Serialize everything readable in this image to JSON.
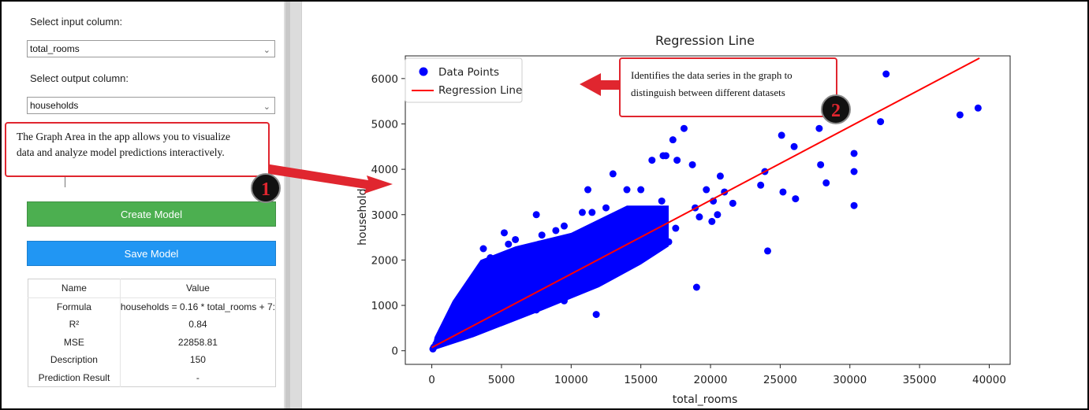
{
  "left_panel": {
    "input_label": "Select input column:",
    "input_value": "total_rooms",
    "output_label": "Select output column:",
    "output_value": "households",
    "create_button": "Create Model",
    "save_button": "Save Model",
    "results": {
      "headers": [
        "Name",
        "Value"
      ],
      "rows": [
        {
          "name": "Formula",
          "value": "households = 0.16 * total_rooms + 7:"
        },
        {
          "name": "R²",
          "value": "0.84"
        },
        {
          "name": "MSE",
          "value": "22858.81"
        },
        {
          "name": "Description",
          "value": "150"
        },
        {
          "name": "Prediction Result",
          "value": "-"
        }
      ]
    }
  },
  "annotations": {
    "callout1_text": "The Graph Area in the app allows you to visualize data and analyze model predictions interactively.",
    "callout1_line1": "The Graph Area in the app allows you to visualize",
    "callout1_line2": "data and analyze model predictions interactively.",
    "badge1": "1",
    "callout2_line1": "Identifies the data series in the graph to",
    "callout2_line2": "distinguish between different datasets",
    "badge2": "2",
    "accent_color": "#e0262f"
  },
  "chart_data": {
    "type": "scatter",
    "title": "Regression Line",
    "xlabel": "total_rooms",
    "ylabel": "households",
    "xlim": [
      -1900,
      41500
    ],
    "ylim": [
      -300,
      6500
    ],
    "xticks": [
      0,
      5000,
      10000,
      15000,
      20000,
      25000,
      30000,
      35000,
      40000
    ],
    "yticks": [
      0,
      1000,
      2000,
      3000,
      4000,
      5000,
      6000
    ],
    "legend": [
      "Data Points",
      "Regression Line"
    ],
    "legend_position": "top-left",
    "series": [
      {
        "name": "Data Points",
        "color": "#0000ff",
        "points": [
          [
            32600,
            6100
          ],
          [
            39200,
            5350
          ],
          [
            37900,
            5200
          ],
          [
            32200,
            5050
          ],
          [
            30300,
            4350
          ],
          [
            30300,
            3950
          ],
          [
            30300,
            3200
          ],
          [
            28300,
            3700
          ],
          [
            27900,
            4100
          ],
          [
            27800,
            4900
          ],
          [
            26100,
            3350
          ],
          [
            26000,
            4500
          ],
          [
            25200,
            3500
          ],
          [
            25100,
            4750
          ],
          [
            24100,
            2200
          ],
          [
            23900,
            3950
          ],
          [
            23600,
            3650
          ],
          [
            21600,
            3250
          ],
          [
            21000,
            3500
          ],
          [
            20700,
            3850
          ],
          [
            20500,
            3000
          ],
          [
            20200,
            3300
          ],
          [
            20100,
            2850
          ],
          [
            19700,
            3550
          ],
          [
            19200,
            2950
          ],
          [
            18900,
            3150
          ],
          [
            19000,
            1400
          ],
          [
            18700,
            4100
          ],
          [
            18100,
            4900
          ],
          [
            17600,
            4200
          ],
          [
            17300,
            4650
          ],
          [
            16800,
            4300
          ],
          [
            16600,
            4300
          ],
          [
            15800,
            4200
          ],
          [
            16200,
            2950
          ],
          [
            16000,
            3100
          ],
          [
            17500,
            2700
          ],
          [
            16500,
            3300
          ],
          [
            15000,
            3550
          ],
          [
            14000,
            3550
          ],
          [
            13000,
            3900
          ],
          [
            14500,
            3100
          ],
          [
            12500,
            3150
          ],
          [
            12000,
            2800
          ],
          [
            11500,
            3050
          ],
          [
            11200,
            3550
          ],
          [
            10800,
            3050
          ],
          [
            10500,
            2550
          ],
          [
            9500,
            2750
          ],
          [
            8900,
            2650
          ],
          [
            8400,
            2400
          ],
          [
            7900,
            2550
          ],
          [
            7700,
            2350
          ],
          [
            7500,
            3000
          ],
          [
            6000,
            2450
          ],
          [
            5500,
            2350
          ],
          [
            3700,
            2250
          ],
          [
            4200,
            2050
          ],
          [
            5200,
            2600
          ],
          [
            6900,
            2100
          ],
          [
            11800,
            800
          ],
          [
            12500,
            1800
          ],
          [
            9800,
            1400
          ],
          [
            8500,
            1200
          ],
          [
            5500,
            1500
          ],
          [
            6500,
            1800
          ],
          [
            3000,
            1300
          ],
          [
            2000,
            800
          ],
          [
            1500,
            700
          ],
          [
            1000,
            500
          ],
          [
            600,
            250
          ],
          [
            300,
            150
          ],
          [
            150,
            80
          ],
          [
            80,
            40
          ],
          [
            2500,
            400
          ],
          [
            3500,
            600
          ],
          [
            4500,
            800
          ],
          [
            5800,
            1000
          ],
          [
            7000,
            1200
          ],
          [
            8000,
            1500
          ],
          [
            9000,
            1600
          ],
          [
            10000,
            1800
          ],
          [
            11000,
            2000
          ],
          [
            13500,
            2300
          ],
          [
            14500,
            2600
          ],
          [
            16000,
            2700
          ],
          [
            17000,
            2400
          ],
          [
            4000,
            1300
          ],
          [
            6000,
            1400
          ],
          [
            7500,
            900
          ],
          [
            9500,
            1100
          ],
          [
            3200,
            900
          ],
          [
            2800,
            600
          ],
          [
            4800,
            1100
          ],
          [
            7200,
            1700
          ],
          [
            8800,
            1900
          ],
          [
            10500,
            2200
          ],
          [
            12200,
            2400
          ],
          [
            13800,
            2700
          ],
          [
            1800,
            450
          ],
          [
            2200,
            700
          ],
          [
            1200,
            300
          ],
          [
            3800,
            1000
          ],
          [
            5000,
            1250
          ],
          [
            6300,
            1600
          ],
          [
            4300,
            1700
          ],
          [
            5700,
            1900
          ],
          [
            6800,
            2200
          ],
          [
            2600,
            1100
          ],
          [
            3400,
            1400
          ],
          [
            9200,
            2300
          ],
          [
            10200,
            2500
          ],
          [
            11500,
            2700
          ]
        ]
      },
      {
        "name": "Regression Line",
        "color": "#ff0000",
        "line": [
          [
            0,
            70
          ],
          [
            39300,
            6450
          ]
        ]
      }
    ]
  }
}
